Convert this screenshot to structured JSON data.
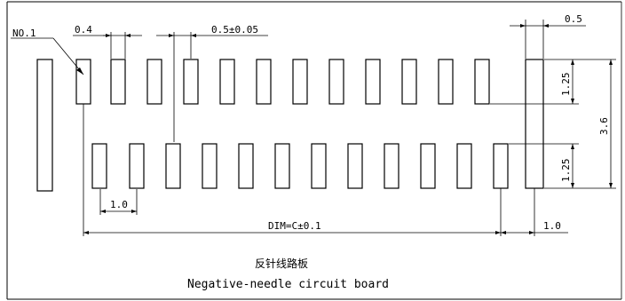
{
  "labels": {
    "pin_number": "NO.1",
    "pad_width": "0.4",
    "pitch_tolerance": "0.5±0.05",
    "pad_width_right": "0.5",
    "row_height_top": "1.25",
    "row_height_bottom": "1.25",
    "total_height": "3.6",
    "pitch_bottom": "1.0",
    "dim_total": "DIM=C±0.1",
    "edge_offset": "1.0"
  },
  "caption": {
    "chinese": "反针线路板",
    "english": "Negative-needle circuit board"
  },
  "colors": {
    "stroke": "#000000",
    "background": "#ffffff"
  }
}
